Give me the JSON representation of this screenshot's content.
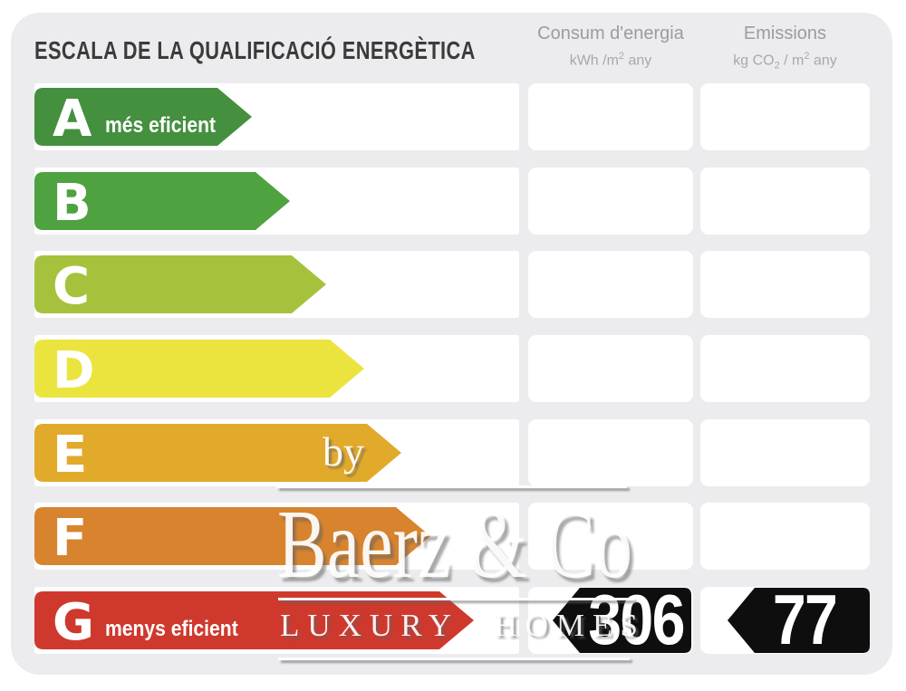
{
  "title": "ESCALA DE LA QUALIFICACIÓ ENERGÈTICA",
  "columns": {
    "consum": {
      "label": "Consum d'energia",
      "unit_prefix": "kWh /m",
      "unit_sup": "2",
      "unit_suffix": " any"
    },
    "emissions": {
      "label": "Emissions",
      "unit_prefix": "kg CO",
      "unit_sub": "2",
      "unit_mid": " / m",
      "unit_sup": "2",
      "unit_suffix": " any"
    }
  },
  "scale": {
    "rows": [
      {
        "grade": "A",
        "label": "més eficient",
        "color": "#44903f",
        "arrow_len": 240
      },
      {
        "grade": "B",
        "color": "#4ea23f",
        "arrow_len": 282
      },
      {
        "grade": "C",
        "color": "#a6c23d",
        "arrow_len": 322
      },
      {
        "grade": "D",
        "color": "#ece43e",
        "arrow_len": 364
      },
      {
        "grade": "E",
        "color": "#e2aa2b",
        "arrow_len": 405
      },
      {
        "grade": "F",
        "color": "#d8842e",
        "arrow_len": 437
      },
      {
        "grade": "G",
        "label": "menys eficient",
        "color": "#cf392d",
        "arrow_len": 485
      }
    ]
  },
  "result": {
    "grade": "G",
    "consum_value": "306",
    "emissions_value": "77",
    "badge_color": "#0e0e0e"
  },
  "watermark": {
    "by": "by",
    "name": "Baerz & Co",
    "tagline": "LUXURY HOMES"
  },
  "chart_data": {
    "type": "bar",
    "title": "ESCALA DE LA QUALIFICACIÓ ENERGÈTICA",
    "categories": [
      "A",
      "B",
      "C",
      "D",
      "E",
      "F",
      "G"
    ],
    "series": [
      {
        "name": "scale_arrow_relative_length_px",
        "values": [
          240,
          282,
          322,
          364,
          405,
          437,
          485
        ]
      }
    ],
    "colors": [
      "#44903f",
      "#4ea23f",
      "#a6c23d",
      "#ece43e",
      "#e2aa2b",
      "#d8842e",
      "#cf392d"
    ],
    "category_labels": {
      "A": "més eficient",
      "G": "menys eficient"
    },
    "annotations": {
      "rated_grade": "G",
      "consum_denergia_kwh_m2_any": 306,
      "emissions_kg_co2_m2_any": 77
    },
    "xlabel": "",
    "ylabel": "",
    "legend": false,
    "grid": false
  }
}
